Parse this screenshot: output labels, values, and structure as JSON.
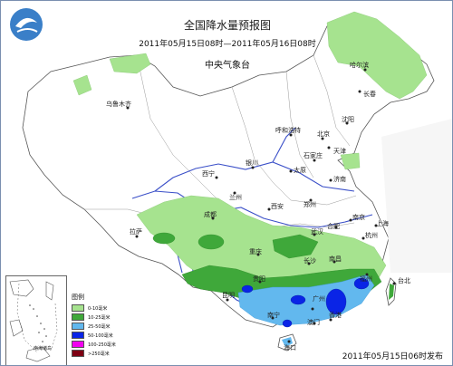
{
  "header": {
    "title": "全国降水量预报图",
    "subtitle": "2011年05月15日08时—2011年05月16日08时",
    "agency": "中央气象台"
  },
  "footer": {
    "issued": "2011年05月15日06时发布"
  },
  "legend": {
    "title": "图例",
    "items": [
      {
        "label": "0-10毫米",
        "color": "#a6e38f"
      },
      {
        "label": "10-25毫米",
        "color": "#3fa83a"
      },
      {
        "label": "25-50毫米",
        "color": "#62b8ee"
      },
      {
        "label": "50-100毫米",
        "color": "#0a24e6"
      },
      {
        "label": "100-250毫米",
        "color": "#f200f0"
      },
      {
        "label": ">250毫米",
        "color": "#7e0013"
      }
    ]
  },
  "inset": {
    "label": "南海诸岛"
  },
  "cities": [
    {
      "name": "乌鲁木齐"
    },
    {
      "name": "哈尔滨"
    },
    {
      "name": "长春"
    },
    {
      "name": "沈阳"
    },
    {
      "name": "呼和浩特"
    },
    {
      "name": "北京"
    },
    {
      "name": "天津"
    },
    {
      "name": "石家庄"
    },
    {
      "name": "太原"
    },
    {
      "name": "银川"
    },
    {
      "name": "济南"
    },
    {
      "name": "西宁"
    },
    {
      "name": "兰州"
    },
    {
      "name": "郑州"
    },
    {
      "name": "西安"
    },
    {
      "name": "合肥"
    },
    {
      "name": "南京"
    },
    {
      "name": "上海"
    },
    {
      "name": "拉萨"
    },
    {
      "name": "成都"
    },
    {
      "name": "武汉"
    },
    {
      "name": "杭州"
    },
    {
      "name": "重庆"
    },
    {
      "name": "长沙"
    },
    {
      "name": "南昌"
    },
    {
      "name": "福州"
    },
    {
      "name": "贵阳"
    },
    {
      "name": "台北"
    },
    {
      "name": "昆明"
    },
    {
      "name": "南宁"
    },
    {
      "name": "广州"
    },
    {
      "name": "香港"
    },
    {
      "name": "澳门"
    },
    {
      "name": "海口"
    }
  ]
}
